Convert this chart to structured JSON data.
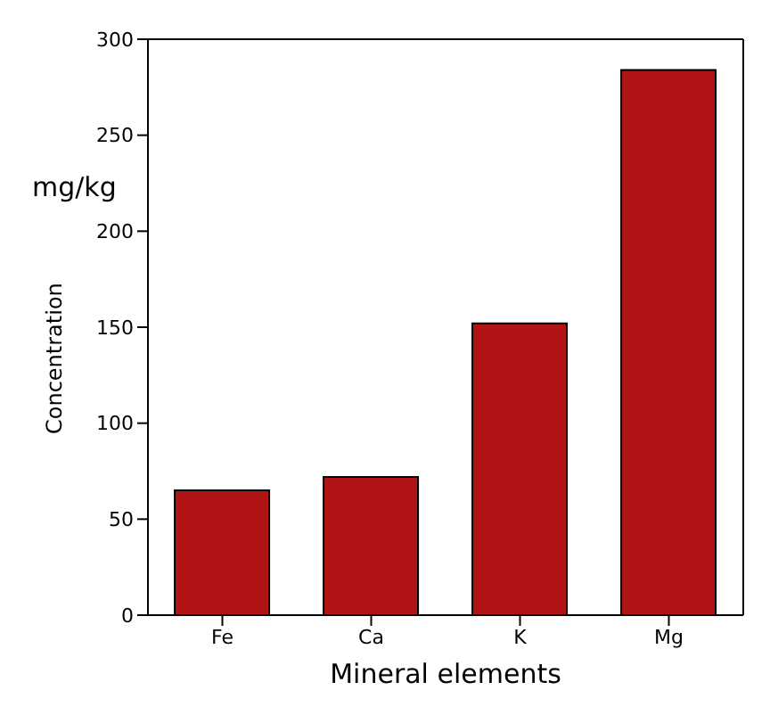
{
  "chart_data": {
    "type": "bar",
    "categories": [
      "Fe",
      "Ca",
      "K",
      "Mg"
    ],
    "values": [
      65,
      72,
      152,
      284
    ],
    "color": "#b01414",
    "xlabel": "Mineral elements",
    "ylabel": "Concentration",
    "annotations": [
      "mg/kg"
    ],
    "ylim": [
      0,
      300
    ],
    "yticks": [
      0,
      50,
      100,
      150,
      200,
      250,
      300
    ],
    "grid": false,
    "legend": false
  }
}
